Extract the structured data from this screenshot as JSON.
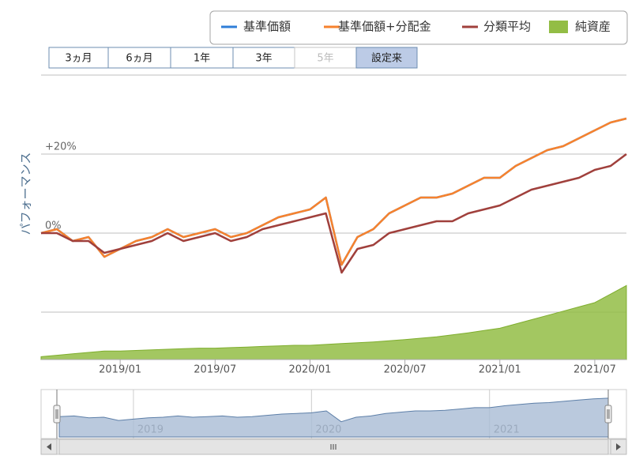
{
  "chart_data": {
    "type": "line",
    "y_axis_title": "パフォーマンス",
    "range_selector": {
      "buttons": [
        "3ヵ月",
        "6ヵ月",
        "1年",
        "3年",
        "5年",
        "設定来"
      ],
      "selected": 5,
      "disabled": [
        4
      ]
    },
    "x": [
      "2018/08",
      "2018/09",
      "2018/10",
      "2018/11",
      "2018/12",
      "2019/01",
      "2019/02",
      "2019/03",
      "2019/04",
      "2019/05",
      "2019/06",
      "2019/07",
      "2019/08",
      "2019/09",
      "2019/10",
      "2019/11",
      "2019/12",
      "2020/01",
      "2020/02",
      "2020/03",
      "2020/04",
      "2020/05",
      "2020/06",
      "2020/07",
      "2020/08",
      "2020/09",
      "2020/10",
      "2020/11",
      "2020/12",
      "2021/01",
      "2021/02",
      "2021/03",
      "2021/04",
      "2021/05",
      "2021/06",
      "2021/07",
      "2021/08",
      "2021/09"
    ],
    "xlim": [
      "2018/08",
      "2021/09"
    ],
    "xticks": [
      "2019/01",
      "2019/07",
      "2020/01",
      "2020/07",
      "2021/01",
      "2021/07"
    ],
    "ylim": [
      -32,
      40
    ],
    "yticks": [
      {
        "value": -20,
        "label": null
      },
      {
        "value": 0,
        "label": "0%"
      },
      {
        "value": 20,
        "label": "+20%"
      },
      {
        "value": 40,
        "label": null
      }
    ],
    "y2lim": [
      0,
      100
    ],
    "grid": true,
    "series": [
      {
        "name": "基準価額",
        "color": "#2f7ed8",
        "values": [
          0,
          1,
          -2,
          -1,
          -6,
          -4,
          -2,
          -1,
          1,
          -1,
          0,
          1,
          -1,
          0,
          2,
          4,
          5,
          6,
          9,
          -8,
          -1,
          1,
          5,
          7,
          9,
          9,
          10,
          12,
          14,
          14,
          17,
          19,
          21,
          22,
          24,
          26,
          28,
          29
        ]
      },
      {
        "name": "基準価額+分配金",
        "color": "#f7822d",
        "values": [
          0,
          1,
          -2,
          -1,
          -6,
          -4,
          -2,
          -1,
          1,
          -1,
          0,
          1,
          -1,
          0,
          2,
          4,
          5,
          6,
          9,
          -8,
          -1,
          1,
          5,
          7,
          9,
          9,
          10,
          12,
          14,
          14,
          17,
          19,
          21,
          22,
          24,
          26,
          28,
          29
        ]
      },
      {
        "name": "分類平均",
        "color": "#a0403c",
        "values": [
          0,
          0,
          -2,
          -2,
          -5,
          -4,
          -3,
          -2,
          0,
          -2,
          -1,
          0,
          -2,
          -1,
          1,
          2,
          3,
          4,
          5,
          -10,
          -4,
          -3,
          0,
          1,
          2,
          3,
          3,
          5,
          6,
          7,
          9,
          11,
          12,
          13,
          14,
          16,
          17,
          20
        ]
      },
      {
        "name": "純資産",
        "color": "#93bd45",
        "axis": "y2",
        "area": true,
        "values": [
          1,
          1.5,
          2,
          2.5,
          3,
          3,
          3.2,
          3.4,
          3.6,
          3.8,
          4,
          4,
          4.2,
          4.4,
          4.6,
          4.8,
          5,
          5,
          5.3,
          5.6,
          5.9,
          6.2,
          6.6,
          7,
          7.5,
          8,
          8.7,
          9.4,
          10.2,
          11,
          12.5,
          14,
          15.5,
          17,
          18.5,
          20,
          23,
          26
        ]
      }
    ],
    "navigator": {
      "xticks": [
        "2019",
        "2020",
        "2021"
      ]
    }
  }
}
